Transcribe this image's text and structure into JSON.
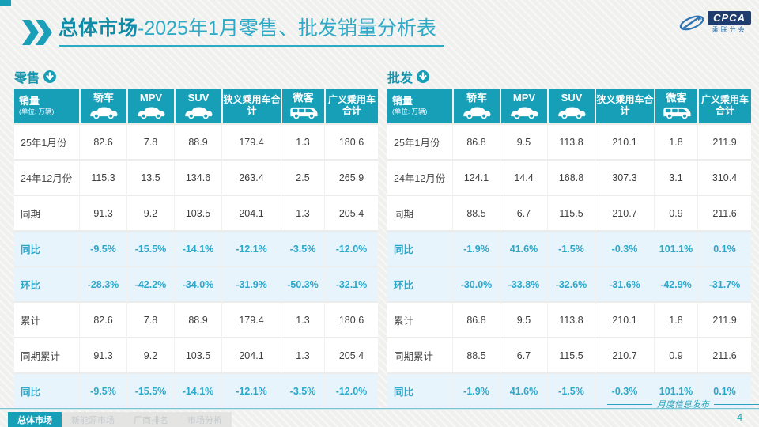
{
  "title": {
    "bold": "总体市场",
    "rest": "-2025年1月零售、批发销量分析表"
  },
  "logo": {
    "text": "CPCA",
    "subtext": "乘联分会"
  },
  "tables": {
    "columns": [
      {
        "label": "销量",
        "sub": "(单位: 万辆)",
        "icon": null,
        "sum": false
      },
      {
        "label": "轿车",
        "icon": "car",
        "sum": false
      },
      {
        "label": "MPV",
        "icon": "car",
        "sum": false
      },
      {
        "label": "SUV",
        "icon": "car",
        "sum": false
      },
      {
        "label": "狭义乘用车合计",
        "icon": null,
        "sum": true
      },
      {
        "label": "微客",
        "icon": "van",
        "sum": false
      },
      {
        "label": "广义乘用车合计",
        "icon": null,
        "sum": true
      }
    ],
    "retail": {
      "label": "零售",
      "rows": [
        {
          "label": "25年1月份",
          "type": "normal",
          "values": [
            "82.6",
            "7.8",
            "88.9",
            "179.4",
            "1.3",
            "180.6"
          ]
        },
        {
          "label": "24年12月份",
          "type": "normal",
          "values": [
            "115.3",
            "13.5",
            "134.6",
            "263.4",
            "2.5",
            "265.9"
          ]
        },
        {
          "label": "同期",
          "type": "normal",
          "values": [
            "91.3",
            "9.2",
            "103.5",
            "204.1",
            "1.3",
            "205.4"
          ]
        },
        {
          "label": "同比",
          "type": "pct",
          "values": [
            "-9.5%",
            "-15.5%",
            "-14.1%",
            "-12.1%",
            "-3.5%",
            "-12.0%"
          ]
        },
        {
          "label": "环比",
          "type": "pct",
          "values": [
            "-28.3%",
            "-42.2%",
            "-34.0%",
            "-31.9%",
            "-50.3%",
            "-32.1%"
          ]
        },
        {
          "label": "累计",
          "type": "normal",
          "values": [
            "82.6",
            "7.8",
            "88.9",
            "179.4",
            "1.3",
            "180.6"
          ]
        },
        {
          "label": "同期累计",
          "type": "normal",
          "values": [
            "91.3",
            "9.2",
            "103.5",
            "204.1",
            "1.3",
            "205.4"
          ]
        },
        {
          "label": "同比",
          "type": "pct",
          "values": [
            "-9.5%",
            "-15.5%",
            "-14.1%",
            "-12.1%",
            "-3.5%",
            "-12.0%"
          ]
        }
      ]
    },
    "wholesale": {
      "label": "批发",
      "rows": [
        {
          "label": "25年1月份",
          "type": "normal",
          "values": [
            "86.8",
            "9.5",
            "113.8",
            "210.1",
            "1.8",
            "211.9"
          ]
        },
        {
          "label": "24年12月份",
          "type": "normal",
          "values": [
            "124.1",
            "14.4",
            "168.8",
            "307.3",
            "3.1",
            "310.4"
          ]
        },
        {
          "label": "同期",
          "type": "normal",
          "values": [
            "88.5",
            "6.7",
            "115.5",
            "210.7",
            "0.9",
            "211.6"
          ]
        },
        {
          "label": "同比",
          "type": "pct",
          "values": [
            "-1.9%",
            "41.6%",
            "-1.5%",
            "-0.3%",
            "101.1%",
            "0.1%"
          ]
        },
        {
          "label": "环比",
          "type": "pct",
          "values": [
            "-30.0%",
            "-33.8%",
            "-32.6%",
            "-31.6%",
            "-42.9%",
            "-31.7%"
          ]
        },
        {
          "label": "累计",
          "type": "normal",
          "values": [
            "86.8",
            "9.5",
            "113.8",
            "210.1",
            "1.8",
            "211.9"
          ]
        },
        {
          "label": "同期累计",
          "type": "normal",
          "values": [
            "88.5",
            "6.7",
            "115.5",
            "210.7",
            "0.9",
            "211.6"
          ]
        },
        {
          "label": "同比",
          "type": "pct",
          "values": [
            "-1.9%",
            "41.6%",
            "-1.5%",
            "-0.3%",
            "101.1%",
            "0.1%"
          ]
        }
      ]
    }
  },
  "footer": {
    "tabs": [
      {
        "label": "总体市场",
        "active": true
      },
      {
        "label": "新能源市场",
        "active": false
      },
      {
        "label": "厂商排名",
        "active": false
      },
      {
        "label": "市场分析",
        "active": false
      }
    ],
    "note": "月度信息发布",
    "page_number": "4"
  },
  "colors": {
    "teal": "#179FB8",
    "title_dark": "#0E8CA8",
    "title_light": "#2FA9C6",
    "pct_row_bg": "#E7F4FB",
    "pct_text": "#2BA7CA",
    "logo_navy": "#1E3C6E",
    "slide_bg": "#F0F0EE"
  }
}
